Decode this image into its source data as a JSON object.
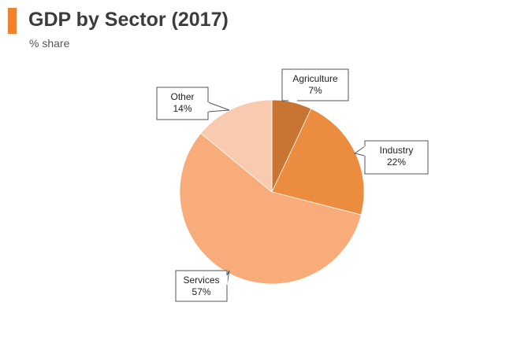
{
  "header": {
    "title": "GDP by Sector (2017)",
    "subtitle": "% share",
    "accent_color": "#f0822d"
  },
  "chart_data": {
    "type": "pie",
    "title": "GDP by Sector (2017)",
    "subtitle": "% share",
    "start_angle_deg": 0,
    "direction": "clockwise",
    "slices": [
      {
        "name": "Agriculture",
        "value": 7,
        "label": "7%",
        "color": "#c87533"
      },
      {
        "name": "Industry",
        "value": 22,
        "label": "22%",
        "color": "#eb8c3f"
      },
      {
        "name": "Services",
        "value": 57,
        "label": "57%",
        "color": "#f8ac7a"
      },
      {
        "name": "Other",
        "value": 14,
        "label": "14%",
        "color": "#f8cbb0"
      }
    ]
  }
}
